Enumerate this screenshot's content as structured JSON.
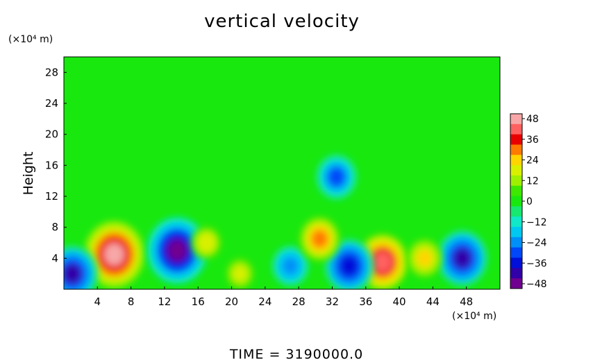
{
  "chart_data": {
    "type": "heatmap",
    "title": "vertical velocity",
    "ylabel": "Height",
    "y_unit": "(×10⁴ m)",
    "x_unit": "(×10⁴ m)",
    "footer": "TIME  =  3190000.0",
    "xlim": [
      0,
      52
    ],
    "ylim": [
      0,
      30
    ],
    "x_ticks": [
      "4",
      "8",
      "12",
      "16",
      "20",
      "24",
      "28",
      "32",
      "36",
      "40",
      "44",
      "48"
    ],
    "y_ticks": [
      "4",
      "8",
      "12",
      "16",
      "20",
      "24",
      "28"
    ],
    "colorbar": {
      "ticks": [
        "48",
        "36",
        "24",
        "12",
        "0",
        "−12",
        "−24",
        "−36",
        "−48"
      ],
      "range": [
        -48,
        48
      ]
    },
    "features": [
      {
        "x": 6,
        "y": 4.5,
        "value": 48
      },
      {
        "x": 13.5,
        "y": 5,
        "value": -48
      },
      {
        "x": 38,
        "y": 3.5,
        "value": 42
      },
      {
        "x": 1,
        "y": 2,
        "value": -40
      },
      {
        "x": 34,
        "y": 3,
        "value": -38
      },
      {
        "x": 47.5,
        "y": 4,
        "value": -40
      },
      {
        "x": 27,
        "y": 3,
        "value": -26
      },
      {
        "x": 17,
        "y": 6,
        "value": 20
      },
      {
        "x": 43,
        "y": 4,
        "value": 24
      },
      {
        "x": 32.5,
        "y": 14.5,
        "value": -30
      },
      {
        "x": 21,
        "y": 2,
        "value": 18
      },
      {
        "x": 30.5,
        "y": 6.5,
        "value": 30
      }
    ]
  }
}
